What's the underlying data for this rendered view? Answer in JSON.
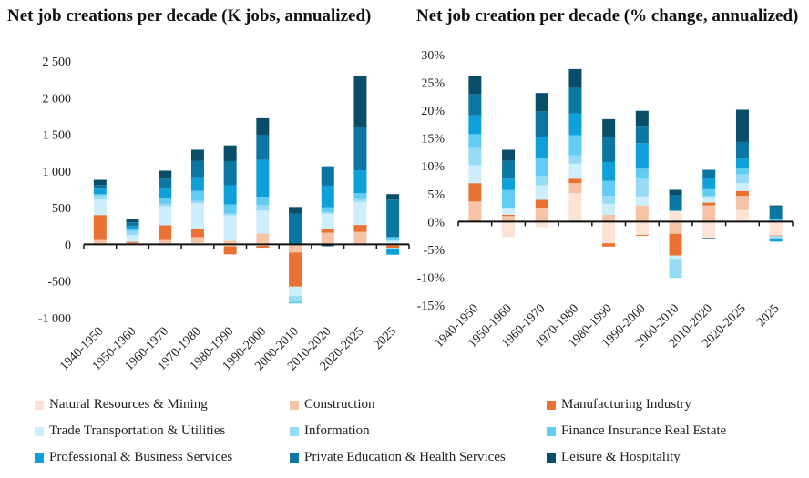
{
  "chart_data": [
    {
      "type": "bar",
      "stacked": true,
      "title": "Net job creations per decade (K jobs, annualized)",
      "ylim": [
        -1000,
        2500
      ],
      "yticks": [
        -1000,
        -500,
        0,
        500,
        1000,
        1500,
        2000,
        2500
      ],
      "ytick_labels": [
        "-1 000",
        "-500",
        "0",
        "500",
        "1 000",
        "1 500",
        "2 000",
        "2 500"
      ],
      "grid": false,
      "categories": [
        "1940-1950",
        "1950-1960",
        "1960-1970",
        "1970-1980",
        "1980-1990",
        "1990-2000",
        "2000-2010",
        "2010-2020",
        "2020-2025",
        "2025"
      ],
      "series": [
        {
          "name": "Natural Resources & Mining",
          "values": [
            0,
            0,
            0,
            20,
            -25,
            -20,
            0,
            0,
            0,
            0
          ]
        },
        {
          "name": "Construction",
          "values": [
            60,
            20,
            60,
            80,
            50,
            150,
            -110,
            160,
            170,
            -15
          ]
        },
        {
          "name": "Manufacturing Industry",
          "values": [
            340,
            15,
            200,
            105,
            -110,
            -25,
            -465,
            50,
            95,
            -30
          ]
        },
        {
          "name": "Trade Transportation & Utilities",
          "values": [
            210,
            90,
            260,
            355,
            345,
            310,
            -125,
            210,
            315,
            50
          ]
        },
        {
          "name": "Information",
          "values": [
            55,
            55,
            35,
            35,
            25,
            75,
            -80,
            20,
            40,
            -20
          ]
        },
        {
          "name": "Finance Insurance Real Estate",
          "values": [
            20,
            25,
            75,
            135,
            125,
            115,
            -25,
            65,
            80,
            50
          ]
        },
        {
          "name": "Professional & Business Services",
          "values": [
            75,
            45,
            130,
            185,
            260,
            500,
            0,
            295,
            310,
            -75
          ]
        },
        {
          "name": "Private Education & Health Services",
          "values": [
            50,
            50,
            135,
            225,
            330,
            345,
            420,
            265,
            590,
            510
          ]
        },
        {
          "name": "Leisure & Hospitality",
          "values": [
            70,
            45,
            110,
            150,
            215,
            225,
            90,
            -25,
            695,
            75
          ]
        }
      ]
    },
    {
      "type": "bar",
      "stacked": true,
      "title": "Net job creation per decade (% change, annualized)",
      "ylim": [
        -15,
        30
      ],
      "yticks": [
        -15,
        -10,
        -5,
        0,
        5,
        10,
        15,
        20,
        25,
        30
      ],
      "ytick_labels": [
        "-15%",
        "-10%",
        "-5%",
        "0%",
        "5%",
        "10%",
        "15%",
        "20%",
        "25%",
        "30%"
      ],
      "grid": false,
      "categories": [
        "1940-1950",
        "1950-1960",
        "1960-1970",
        "1970-1980",
        "1980-1990",
        "1990-2000",
        "2000-2010",
        "2010-2020",
        "2020-2025",
        "2025"
      ],
      "series": [
        {
          "name": "Natural Resources & Mining",
          "values": [
            0,
            -2.8,
            -1.0,
            5.1,
            -3.9,
            -2.4,
            1.9,
            -2.9,
            2.1,
            -2.5
          ]
        },
        {
          "name": "Construction",
          "values": [
            3.6,
            1.0,
            2.4,
            1.8,
            1.2,
            2.9,
            -2.2,
            2.9,
            2.5,
            0
          ]
        },
        {
          "name": "Manufacturing Industry",
          "values": [
            3.3,
            0.2,
            1.5,
            0.8,
            -0.6,
            -0.15,
            -3.9,
            0.5,
            0.9,
            -0.1
          ]
        },
        {
          "name": "Trade Transportation & Utilities",
          "values": [
            3.2,
            1.1,
            2.6,
            2.7,
            2.0,
            1.6,
            -0.7,
            1.0,
            1.4,
            0
          ]
        },
        {
          "name": "Information",
          "values": [
            3.1,
            0,
            1.7,
            1.5,
            1.4,
            3.3,
            -3.2,
            0.2,
            1.6,
            -0.6
          ]
        },
        {
          "name": "Finance Insurance Real Estate",
          "values": [
            2.5,
            3.4,
            3.3,
            3.6,
            2.7,
            1.7,
            -0.1,
            1.2,
            1.1,
            0.5
          ]
        },
        {
          "name": "Professional & Business Services",
          "values": [
            3.4,
            2.0,
            3.7,
            3.9,
            3.4,
            4.6,
            0.1,
            2.0,
            1.7,
            -0.4
          ]
        },
        {
          "name": "Private Education & Health Services",
          "values": [
            3.8,
            3.2,
            4.6,
            4.6,
            4.5,
            3.1,
            2.8,
            1.5,
            3.0,
            2.2
          ]
        },
        {
          "name": "Leisure & Hospitality",
          "values": [
            3.3,
            2.0,
            3.3,
            3.4,
            3.2,
            2.7,
            0.9,
            -0.1,
            5.8,
            0.2
          ]
        }
      ]
    }
  ],
  "colors": [
    "#fce3d6",
    "#f6c3a7",
    "#e97132",
    "#cdeefb",
    "#97dbf7",
    "#62ccf3",
    "#0ea0d8",
    "#0b76a1",
    "#0a4d69"
  ],
  "legend": [
    "Natural Resources & Mining",
    "Construction",
    "Manufacturing Industry",
    "Trade Transportation & Utilities",
    "Information",
    "Finance Insurance Real Estate",
    "Professional & Business Services",
    "Private Education & Health Services",
    "Leisure & Hospitality"
  ]
}
